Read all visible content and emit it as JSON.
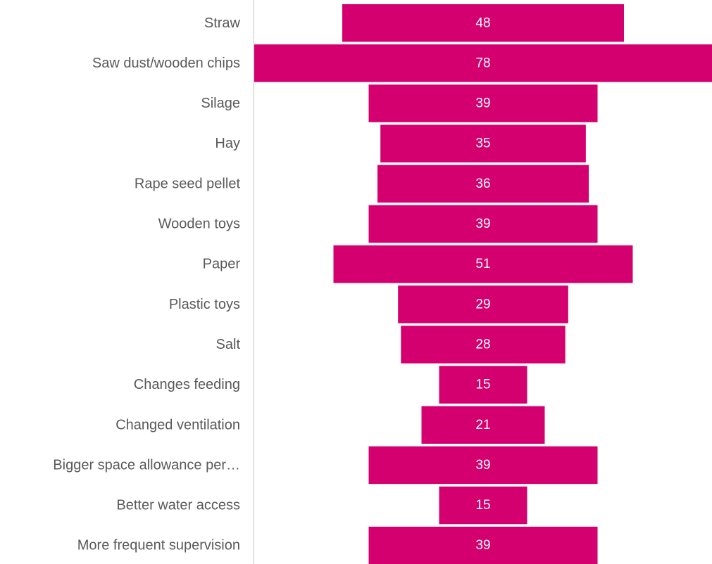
{
  "chart_data": {
    "type": "bar",
    "orientation": "horizontal",
    "alignment": "centered",
    "categories": [
      "Straw",
      "Saw dust/wooden chips",
      "Silage",
      "Hay",
      "Rape seed pellet",
      "Wooden toys",
      "Paper",
      "Plastic toys",
      "Salt",
      "Changes feeding",
      "Changed ventilation",
      "Bigger space allowance per…",
      "Better water access",
      "More frequent supervision"
    ],
    "values": [
      48,
      78,
      39,
      35,
      36,
      39,
      51,
      29,
      28,
      15,
      21,
      39,
      15,
      39
    ],
    "title": "",
    "xlabel": "",
    "ylabel": "",
    "grid": false,
    "legend": "none",
    "colors": {
      "bar": "#d4006f",
      "label": "#595959",
      "value_label": "#ffffff",
      "axis_line": "#d9d9d9"
    }
  }
}
